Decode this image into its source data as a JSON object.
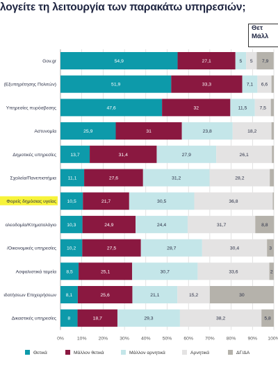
{
  "title": "λογείτε τη λειτουργία των παρακάτω υπηρεσιών;",
  "corner_box": {
    "line1": "Θετ",
    "line2": "Μάλλ"
  },
  "colors": {
    "thetika": "#0d9aaa",
    "mallon_thetika": "#8a1840",
    "mallon_arnitika": "#c4e6e9",
    "arnitika": "#e4e3e3",
    "dg_da": "#b5b2ab",
    "highlight": "#f7f33a",
    "grid": "#d0d0d0"
  },
  "chart_data": {
    "type": "bar",
    "orientation": "horizontal",
    "stacked": true,
    "categories": [
      "Gov.gr",
      "(Εξυπηρέτησης Πολιτών)",
      "Υπηρεσίες πυρόσβεσης",
      "Αστυνομία",
      "Δημοτικές υπηρεσίες",
      "Σχολεία/Πανεπιστήμια",
      "Φορείς δημόσιας υγείας",
      "Κτηματολόγιο",
      "/Οικονομικές υπηρεσίες",
      "Ασφαλιστικά ταμεία",
      "ιδοτήσεων Επιχειρήσεων",
      "Δικαστικές υπηρεσίες"
    ],
    "category_label_prefix": [
      "",
      "",
      "",
      "",
      "",
      "",
      "",
      "ολεοδομία/",
      "",
      "",
      "",
      ""
    ],
    "highlighted_category_index": 6,
    "series": [
      {
        "name": "Θετικά",
        "values": [
          54.9,
          51.9,
          47.6,
          25.9,
          13.7,
          11.1,
          10.5,
          10.3,
          10.2,
          8.5,
          8.1,
          8
        ]
      },
      {
        "name": "Μάλλον θετικά",
        "values": [
          27.1,
          33.3,
          32,
          31,
          31.4,
          27.6,
          21.7,
          24.9,
          27.5,
          25.1,
          25.6,
          18.7
        ]
      },
      {
        "name": "Μάλλον αρνητικά",
        "values": [
          5,
          7.1,
          11.5,
          23.8,
          27.9,
          31.2,
          30.5,
          24.4,
          28.7,
          30.7,
          21.1,
          29.3
        ]
      },
      {
        "name": "Αρνητικά",
        "values": [
          5,
          6.6,
          7.5,
          18.2,
          26.1,
          28.2,
          36.8,
          31.7,
          30.4,
          33.6,
          15.2,
          38.2
        ]
      },
      {
        "name": "ΔΓ/ΔΑ",
        "values": [
          7.9,
          1.1,
          1.4,
          1.1,
          0.9,
          1.9,
          0.5,
          8.8,
          3.2,
          2.1,
          30,
          5.8
        ]
      }
    ],
    "value_labels": [
      [
        "54,9",
        "27,1",
        "5",
        "5",
        "7,9"
      ],
      [
        "51,9",
        "33,3",
        "7,1",
        "6,6",
        ""
      ],
      [
        "47,6",
        "32",
        "11,5",
        "7,5",
        ""
      ],
      [
        "25,9",
        "31",
        "23,8",
        "18,2",
        ""
      ],
      [
        "13,7",
        "31,4",
        "27,9",
        "26,1",
        ""
      ],
      [
        "11,1",
        "27,6",
        "31,2",
        "28,2",
        ""
      ],
      [
        "10,5",
        "21,7",
        "30,5",
        "36,8",
        ""
      ],
      [
        "10,3",
        "24,9",
        "24,4",
        "31,7",
        "8,8"
      ],
      [
        "10,2",
        "27,5",
        "28,7",
        "30,4",
        "3"
      ],
      [
        "8,5",
        "25,1",
        "30,7",
        "33,6",
        "2"
      ],
      [
        "8,1",
        "25,6",
        "21,1",
        "15,2",
        "30"
      ],
      [
        "8",
        "18,7",
        "29,3",
        "38,2",
        "5,8"
      ]
    ],
    "x_ticks": [
      "0%",
      "10%",
      "20%",
      "30%",
      "40%",
      "50%",
      "60%",
      "70%",
      "80%",
      "90%",
      "100%"
    ],
    "xlim": [
      0,
      100
    ],
    "grid": true,
    "legend_position": "bottom"
  }
}
